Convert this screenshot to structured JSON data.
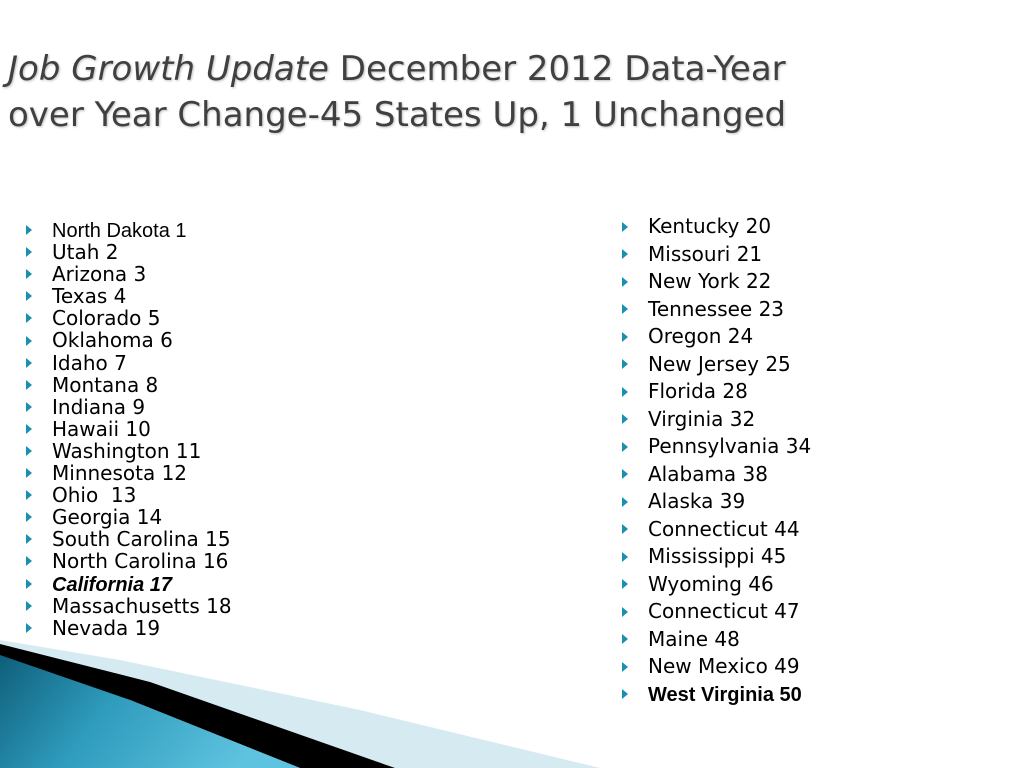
{
  "title": {
    "italic_part": "Job Growth Update",
    "line1_rest": " December 2012 Data-Year",
    "line2": "over Year Change-45 States Up, 1 Unchanged"
  },
  "left_column": [
    {
      "text": "North Dakota 1",
      "style": "regular-sans"
    },
    {
      "text": "Utah 2",
      "style": "regular"
    },
    {
      "text": "Arizona 3",
      "style": "regular"
    },
    {
      "text": "Texas 4",
      "style": "regular"
    },
    {
      "text": "Colorado 5",
      "style": "regular"
    },
    {
      "text": "Oklahoma 6",
      "style": "regular"
    },
    {
      "text": "Idaho 7",
      "style": "regular"
    },
    {
      "text": "Montana 8",
      "style": "regular"
    },
    {
      "text": "Indiana 9",
      "style": "regular"
    },
    {
      "text": "Hawaii 10",
      "style": "regular"
    },
    {
      "text": "Washington 11",
      "style": "regular"
    },
    {
      "text": "Minnesota 12",
      "style": "regular"
    },
    {
      "text": "Ohio  13",
      "style": "regular"
    },
    {
      "text": "Georgia 14",
      "style": "regular"
    },
    {
      "text": "South Carolina 15",
      "style": "regular"
    },
    {
      "text": "North Carolina 16",
      "style": "regular"
    },
    {
      "text": "California 17",
      "style": "italic"
    },
    {
      "text": "Massachusetts 18",
      "style": "regular"
    },
    {
      "text": "Nevada 19",
      "style": "regular"
    }
  ],
  "right_column": [
    {
      "text": "Kentucky 20",
      "style": "regular"
    },
    {
      "text": "Missouri 21",
      "style": "regular"
    },
    {
      "text": "New York 22",
      "style": "regular"
    },
    {
      "text": "Tennessee 23",
      "style": "regular"
    },
    {
      "text": "Oregon 24",
      "style": "regular"
    },
    {
      "text": "New Jersey 25",
      "style": "regular"
    },
    {
      "text": "Florida 28",
      "style": "regular"
    },
    {
      "text": "Virginia 32",
      "style": "regular"
    },
    {
      "text": "Pennsylvania 34",
      "style": "regular"
    },
    {
      "text": "Alabama 38",
      "style": "regular"
    },
    {
      "text": "Alaska 39",
      "style": "regular"
    },
    {
      "text": "Connecticut 44",
      "style": "regular"
    },
    {
      "text": "Mississippi 45",
      "style": "regular"
    },
    {
      "text": "Wyoming 46",
      "style": "regular"
    },
    {
      "text": "Connecticut 47",
      "style": "regular"
    },
    {
      "text": "Maine 48",
      "style": "regular"
    },
    {
      "text": "New Mexico 49",
      "style": "regular"
    },
    {
      "text": "West Virginia 50",
      "style": "bold"
    }
  ],
  "colors": {
    "bullet": "#1b8fb0",
    "title": "#404040",
    "swoosh_dark": "#0e5f7a",
    "swoosh_light": "#5ec3df",
    "swoosh_pale": "#d6eaf2",
    "stripe_black": "#000000"
  },
  "icons": {
    "bullet": "triangle-bullet-icon"
  }
}
